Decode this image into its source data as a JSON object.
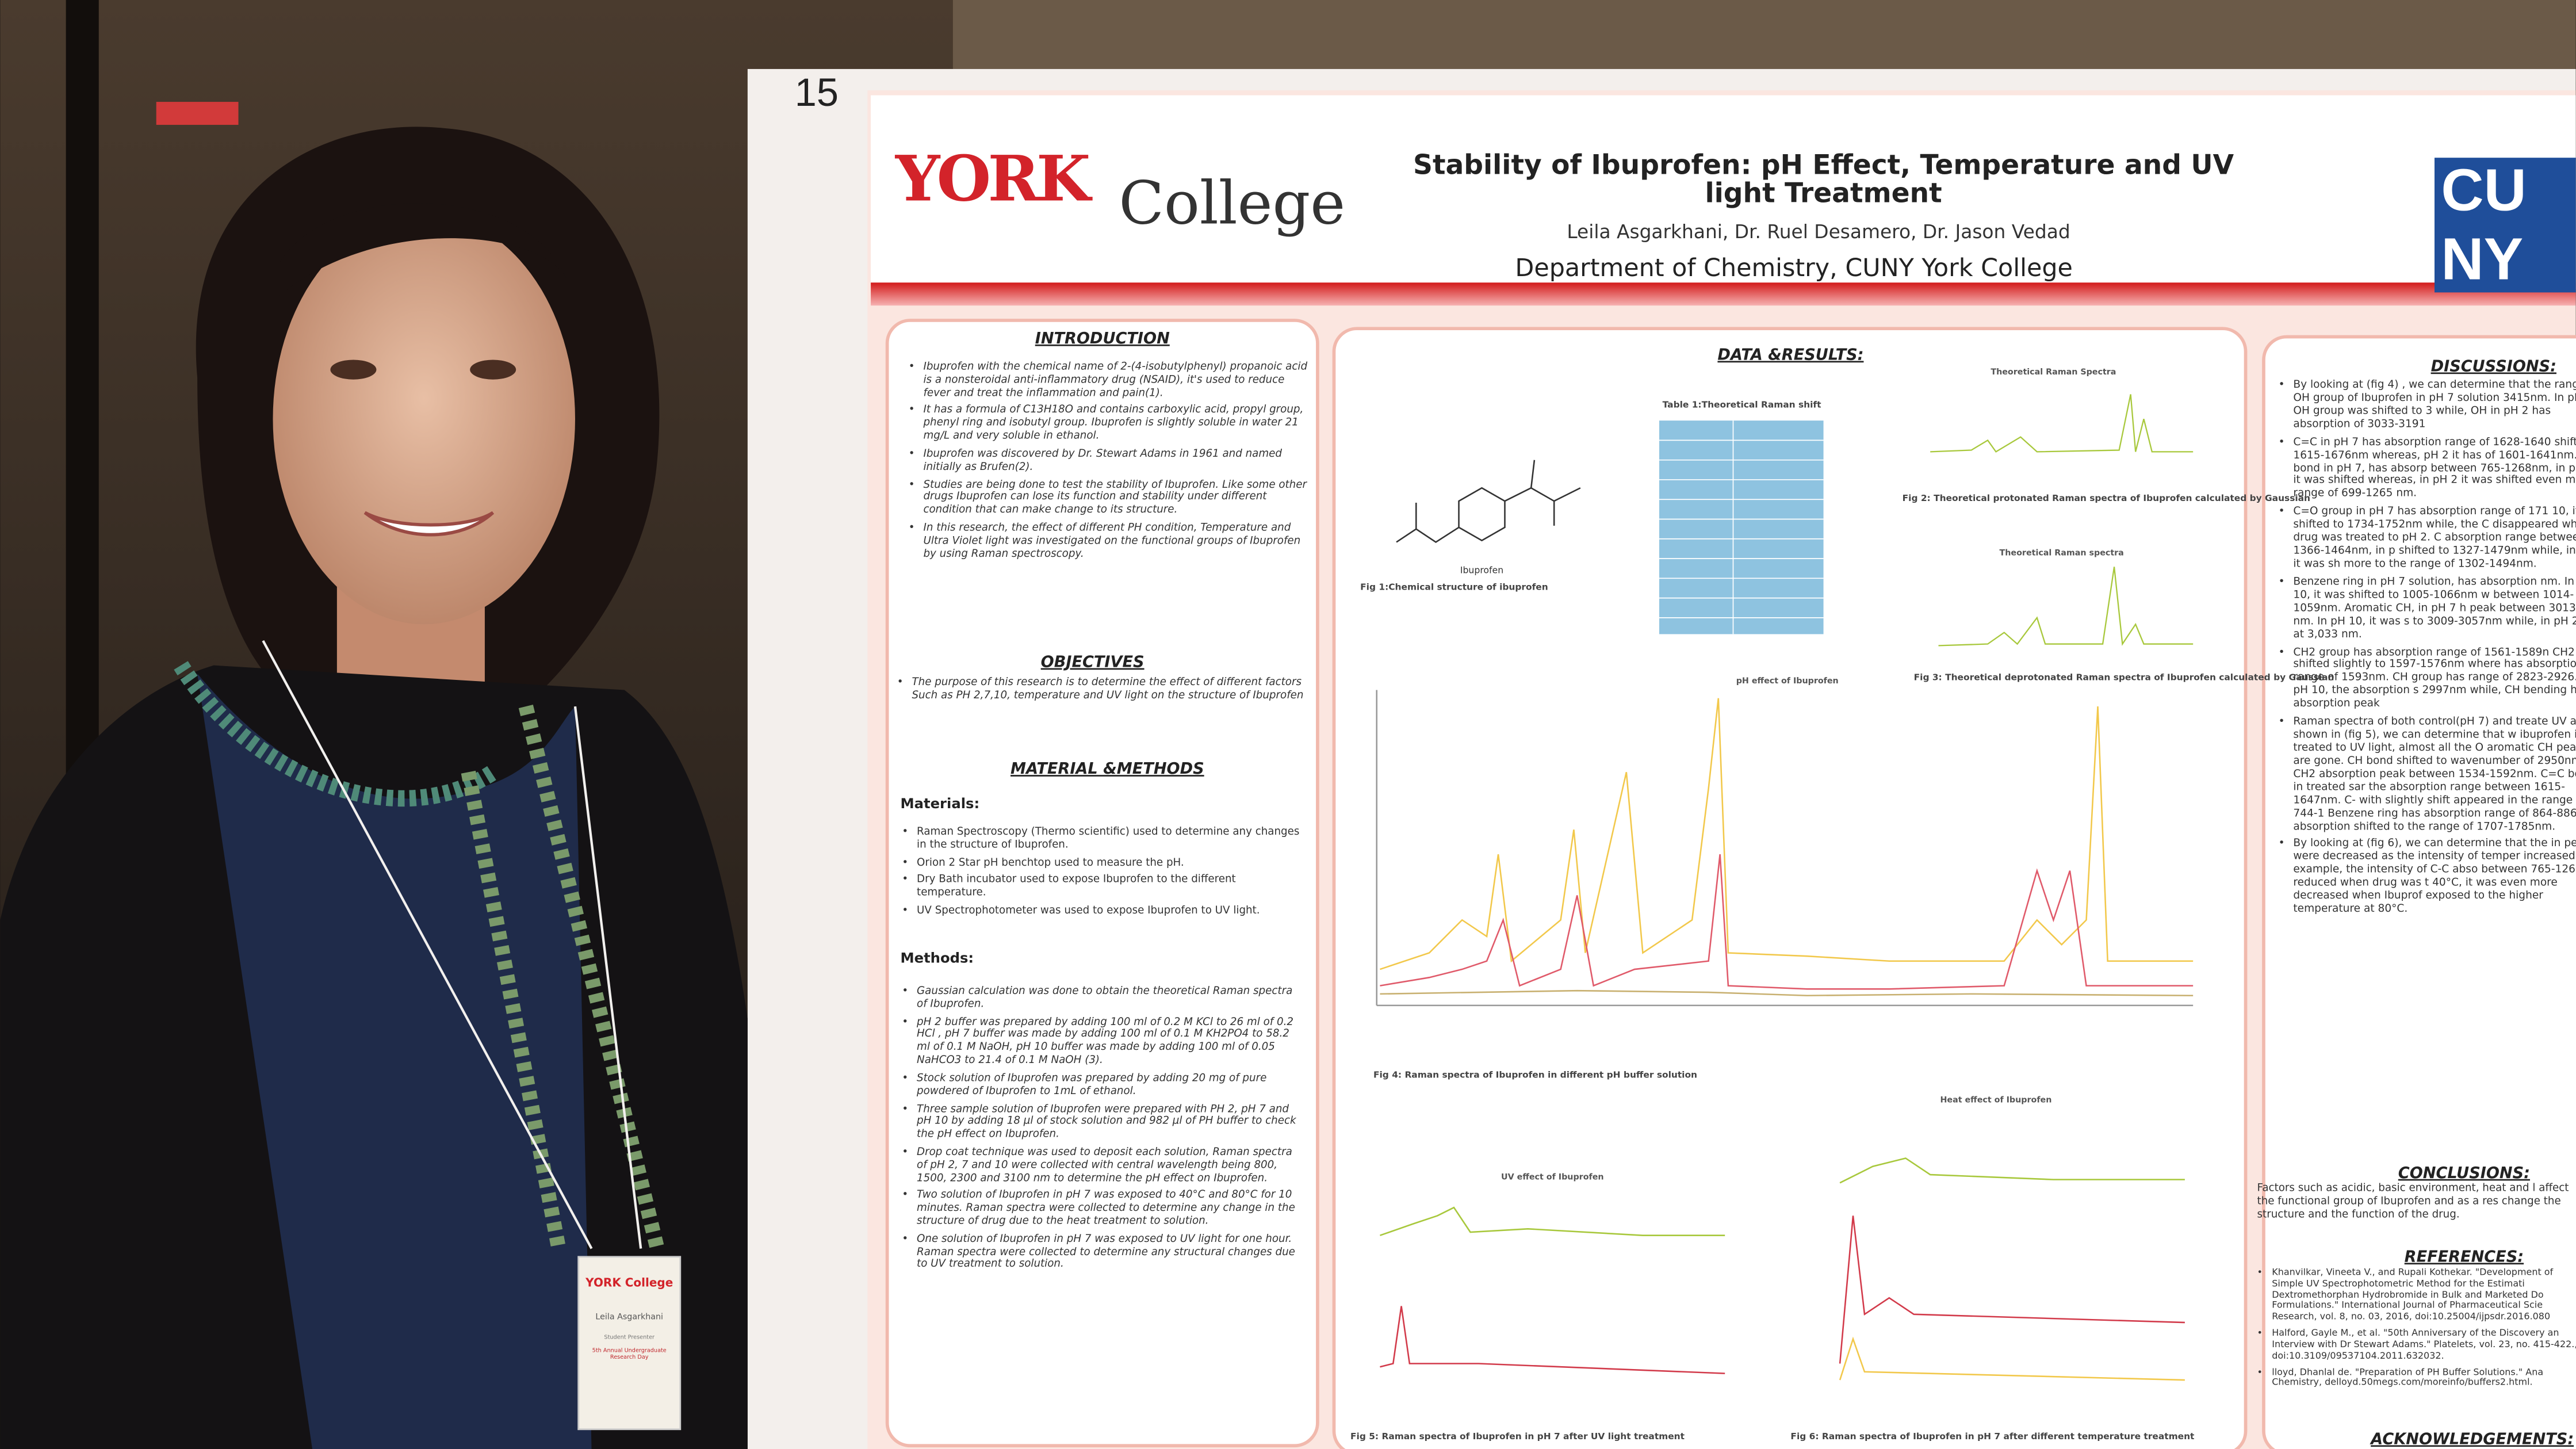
{
  "poster": {
    "number": "15",
    "logo_york": "YORK",
    "logo_college": "College",
    "title": "Stability of Ibuprofen: pH Effect, Temperature and UV light Treatment",
    "authors": "Leila Asgarkhani, Dr. Ruel Desamero, Dr. Jason Vedad",
    "department": "Department of Chemistry, CUNY York College",
    "cuny_1": "CU",
    "cuny_2": "NY",
    "introduction": {
      "heading": "INTRODUCTION",
      "bullets": [
        "Ibuprofen with the chemical name of 2-(4-isobutylphenyl) propanoic acid is a nonsteroidal anti-inflammatory drug (NSAID), it's used to reduce fever and treat the inflammation and pain(1).",
        "It has a formula of C13H18O and contains carboxylic acid, propyl group, phenyl ring and isobutyl group. Ibuprofen is slightly soluble in water 21 mg/L and very soluble in ethanol.",
        "Ibuprofen was discovered by Dr. Stewart Adams in 1961 and named initially as Brufen(2).",
        "Studies are being done to test the stability of Ibuprofen. Like some other drugs Ibuprofen can lose its function and stability under different condition that can make change to its structure.",
        "In this research, the effect of different PH condition, Temperature and Ultra Violet light was investigated on the functional groups of Ibuprofen by using Raman spectroscopy."
      ]
    },
    "objectives": {
      "heading": "OBJECTIVES",
      "bullets": [
        "The purpose of this research is to determine the effect of different factors Such as PH 2,7,10, temperature and UV light on the structure of Ibuprofen"
      ]
    },
    "methods": {
      "heading": "MATERIAL &METHODS",
      "materials_heading": "Materials:",
      "materials": [
        "Raman Spectroscopy (Thermo scientific) used to determine any changes in the structure of Ibuprofen.",
        "Orion 2 Star pH benchtop used to measure the pH.",
        "Dry Bath incubator used to expose Ibuprofen to the different temperature.",
        "UV Spectrophotometer was used to expose Ibuprofen to UV light."
      ],
      "methods_heading": "Methods:",
      "methods": [
        "Gaussian calculation was done to obtain the theoretical Raman spectra of Ibuprofen.",
        "pH 2 buffer was prepared by adding 100 ml of 0.2 M KCl to 26 ml of 0.2 HCl , pH 7 buffer was made by adding 100 ml of 0.1 M KH2PO4 to 58.2 ml of 0.1 M NaOH, pH 10 buffer was made by adding 100 ml of 0.05 NaHCO3 to 21.4 of 0.1 M NaOH (3).",
        "Stock solution of Ibuprofen was prepared by adding 20 mg of pure powdered of Ibuprofen to 1mL of ethanol.",
        "Three sample solution of Ibuprofen were prepared with PH 2, pH 7 and pH 10 by adding 18 µl of stock solution and 982 µl of PH buffer to check the pH effect on Ibuprofen.",
        "Drop coat technique was used to deposit each solution, Raman spectra of pH 2, 7 and 10 were collected with central wavelength being 800, 1500, 2300 and 3100 nm to determine the pH effect on Ibuprofen.",
        "Two solution of Ibuprofen in pH 7 was exposed to 40°C and 80°C for 10 minutes. Raman spectra were collected to determine any change in the structure of drug due to the heat treatment to solution.",
        "One solution of Ibuprofen in pH 7 was exposed to UV light for one hour. Raman spectra were collected to determine any structural changes due to UV treatment to solution."
      ]
    },
    "results": {
      "heading": "DATA &RESULTS:",
      "table_title": "Table 1:Theoretical Raman shift",
      "molecule_label": "Ibuprofen",
      "fig1_caption": "Fig 1:Chemical structure of ibuprofen",
      "fig2_title": "Theoretical Raman Spectra",
      "fig2_caption": "Fig 2: Theoretical protonated Raman spectra of Ibuprofen calculated by Gaussian",
      "fig3_title": "Theoretical Raman spectra",
      "fig3_caption": "Fig 3: Theoretical deprotonated Raman spectra of Ibuprofen calculated by Gaussian",
      "fig4_title": "pH effect of Ibuprofen",
      "fig4_caption": "Fig 4: Raman spectra of Ibuprofen in different pH buffer solution",
      "fig5_title": "UV effect of Ibuprofen",
      "fig5_caption": "Fig 5: Raman spectra of Ibuprofen in pH 7 after UV light treatment",
      "fig6_title": "Heat effect of Ibuprofen",
      "fig6_caption": "Fig 6: Raman spectra of Ibuprofen in pH 7 after different temperature treatment"
    },
    "discussions": {
      "heading": "DISCUSSIONS:",
      "bullets": [
        "By looking at (fig 4) , we can determine that the range for OH group of Ibuprofen in pH 7 solution 3415nm. In pH 10, OH group was shifted to 3 while, OH in pH 2 has absorption of 3033-3191",
        "C=C in pH 7 has absorption range of 1628-1640 shifted to 1615-1676nm whereas, pH 2 it has of 1601-1641nm. C-C bond in pH 7, has absorp between 765-1268nm, in pH 10, it was shifted whereas, in pH 2 it was shifted even more to range of 699-1265 nm.",
        "C=O group in pH 7 has absorption range of 171 10, it was shifted to 1734-1752nm while, the C disappeared when drug was treated to pH 2. C absorption range between 1366-1464nm, in p shifted to 1327-1479nm while, in pH 2 it was sh more to the range of 1302-1494nm.",
        "Benzene ring in pH 7 solution, has absorption nm. In pH 10, it was shifted to 1005-1066nm w between 1014-1059nm. Aromatic CH, in pH 7 h peak between 3013-3065 nm. In pH 10, it was s to 3009-3057nm while, in pH 2 its at 3,033 nm.",
        "CH2 group has absorption range of 1561-1589n CH2 was shifted slightly to 1597-1576nm where has absorption range of 1593nm. CH group has range of 2823-2926. In pH 10, the absorption s 2997nm while, CH bending has absorption peak",
        "Raman spectra of both control(pH 7) and treate UV are shown in (fig 5), we can determine that w ibuprofen is treated to UV light, almost all the O aromatic CH peaks are gone. CH bond shifted to wavenumber of 2950nm. CH2 absorption peak between 1534-1592nm. C=C bond in treated sar the absorption range between 1615-1647nm. C- with slightly shift appeared in the range of 744-1 Benzene ring has absorption range of 864-886nr absorption shifted to the range of 1707-1785nm.",
        "By looking at (fig 6), we can determine that the in peaks were decreased as the intensity of temper increased. For example, the intensity of C-C abso between 765-1268 was reduced when drug was t 40°C, it was even more decreased when Ibuprof exposed to the higher temperature at 80°C."
      ]
    },
    "conclusions": {
      "heading": "CONCLUSIONS:",
      "text": "Factors such as acidic, basic environment, heat and l affect the functional group of Ibuprofen and as a res change the structure and the function of the drug."
    },
    "references": {
      "heading": "REFERENCES:",
      "items": [
        "Khanvilkar, Vineeta V., and Rupali Kothekar. \"Development of Simple UV Spectrophotometric Method for the Estimati Dextromethorphan Hydrobromide in Bulk and Marketed Do Formulations.\" International Journal of Pharmaceutical Scie Research, vol. 8, no. 03, 2016, doi:10.25004/ijpsdr.2016.080",
        "Halford, Gayle M., et al. \"50th Anniversary of the Discovery an Interview with Dr Stewart Adams.\" Platelets, vol. 23, no. 415-422., doi:10.3109/09537104.2011.632032.",
        "lloyd, Dhanlal de. \"Preparation of PH Buffer Solutions.\" Ana Chemistry, delloyd.50megs.com/moreinfo/buffers2.html."
      ]
    },
    "acknowledgements": "ACKNOWLEDGEMENTS:"
  },
  "badge": {
    "logo": "YORK College",
    "name": "Leila Asgarkhani",
    "role": "Student Presenter",
    "event": "5th Annual Undergraduate Research Day"
  }
}
